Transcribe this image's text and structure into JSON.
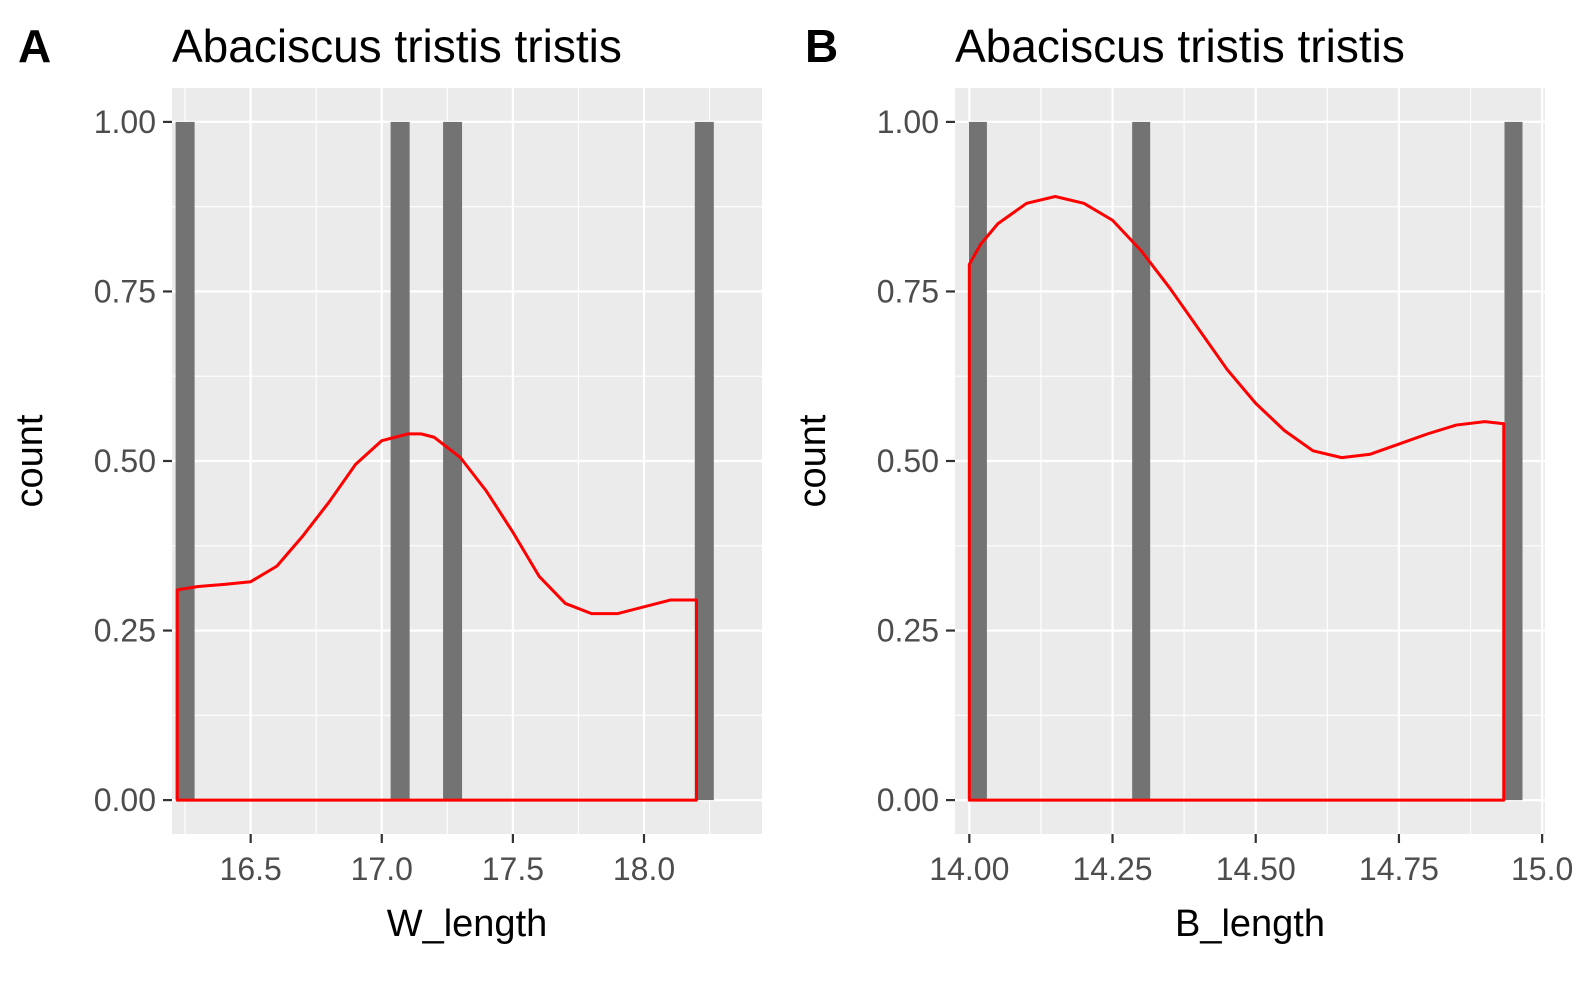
{
  "colors": {
    "panel_background": "#ebebeb",
    "grid": "#ffffff",
    "bar": "#737373",
    "density_line": "#ff0000",
    "tick_text": "#4d4d4d"
  },
  "chart_data": [
    {
      "tag": "A",
      "type": "bar",
      "title": "Abaciscus tristis tristis",
      "xlabel": "W_length",
      "ylabel": "count",
      "xlim": [
        16.2,
        18.45
      ],
      "ylim": [
        -0.05,
        1.05
      ],
      "x_ticks": [
        16.5,
        17.0,
        17.5,
        18.0
      ],
      "x_tick_labels": [
        "16.5",
        "17.0",
        "17.5",
        "18.0"
      ],
      "y_ticks": [
        0,
        0.25,
        0.5,
        0.75,
        1.0
      ],
      "y_tick_labels": [
        "0.00",
        "0.25",
        "0.50",
        "0.75",
        "1.00"
      ],
      "grid": true,
      "bars": [
        {
          "x": 16.25,
          "count": 1
        },
        {
          "x": 17.07,
          "count": 1
        },
        {
          "x": 17.27,
          "count": 1
        },
        {
          "x": 18.23,
          "count": 1
        }
      ],
      "density": {
        "x": [
          16.22,
          16.3,
          16.4,
          16.5,
          16.6,
          16.7,
          16.8,
          16.9,
          17.0,
          17.1,
          17.15,
          17.2,
          17.3,
          17.4,
          17.5,
          17.6,
          17.7,
          17.8,
          17.9,
          18.0,
          18.1,
          18.2
        ],
        "y": [
          0.31,
          0.315,
          0.318,
          0.322,
          0.345,
          0.39,
          0.44,
          0.495,
          0.53,
          0.54,
          0.54,
          0.535,
          0.505,
          0.455,
          0.395,
          0.33,
          0.29,
          0.275,
          0.275,
          0.285,
          0.295,
          0.295
        ]
      }
    },
    {
      "tag": "B",
      "type": "bar",
      "title": "Abaciscus tristis tristis",
      "xlabel": "B_length",
      "ylabel": "count",
      "xlim": [
        13.975,
        15.005
      ],
      "ylim": [
        -0.05,
        1.05
      ],
      "x_ticks": [
        14.0,
        14.25,
        14.5,
        14.75,
        15.0
      ],
      "x_tick_labels": [
        "14.00",
        "14.25",
        "14.50",
        "14.75",
        "15.0"
      ],
      "y_ticks": [
        0,
        0.25,
        0.5,
        0.75,
        1.0
      ],
      "y_tick_labels": [
        "0.00",
        "0.25",
        "0.50",
        "0.75",
        "1.00"
      ],
      "grid": true,
      "bars": [
        {
          "x": 14.015,
          "count": 1
        },
        {
          "x": 14.3,
          "count": 1
        },
        {
          "x": 14.95,
          "count": 1
        }
      ],
      "density": {
        "x": [
          14.0,
          14.02,
          14.05,
          14.1,
          14.15,
          14.2,
          14.25,
          14.3,
          14.35,
          14.4,
          14.45,
          14.5,
          14.55,
          14.6,
          14.65,
          14.7,
          14.75,
          14.8,
          14.85,
          14.9,
          14.933
        ],
        "y": [
          0.79,
          0.82,
          0.85,
          0.88,
          0.89,
          0.88,
          0.855,
          0.81,
          0.755,
          0.695,
          0.635,
          0.585,
          0.545,
          0.515,
          0.505,
          0.51,
          0.525,
          0.54,
          0.553,
          0.558,
          0.555
        ]
      }
    }
  ]
}
